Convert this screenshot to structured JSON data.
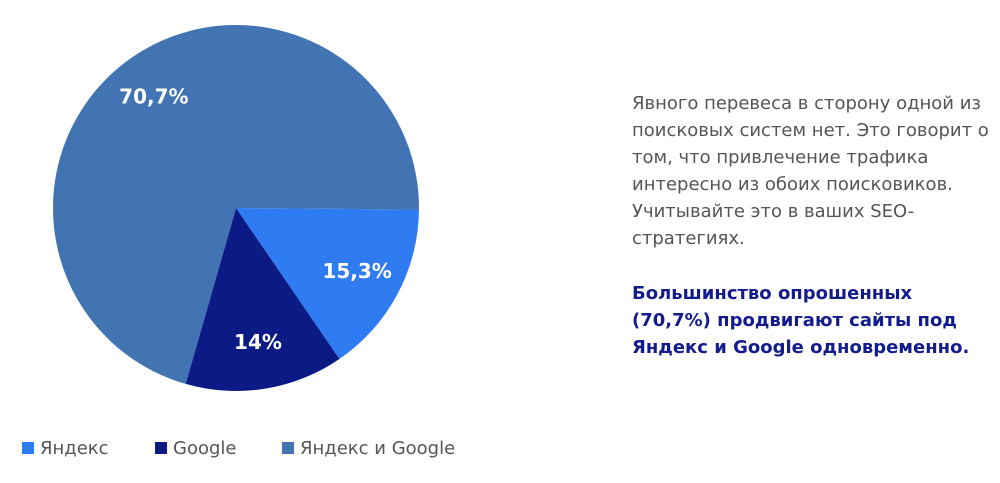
{
  "chart_data": {
    "type": "pie",
    "categories": [
      "Яндекс",
      "Google",
      "Яндекс и Google"
    ],
    "values": [
      15.3,
      14,
      70.7
    ],
    "value_labels": [
      "15,3%",
      "14%",
      "70,7%"
    ],
    "colors": [
      "#2f7cf2",
      "#0c1a86",
      "#4273b3"
    ],
    "legend": "bottom"
  },
  "side_text": {
    "paragraph": "Явного перевеса в сторону одной из поисковых систем нет. Это говорит о том, что привлечение трафика интересно из обоих поисковиков. Учитывайте это в ваших SEO-стратегиях.",
    "highlight": "Большинство опрошенных (70,7%) продвигают сайты под Яндекс и Google одновременно."
  }
}
